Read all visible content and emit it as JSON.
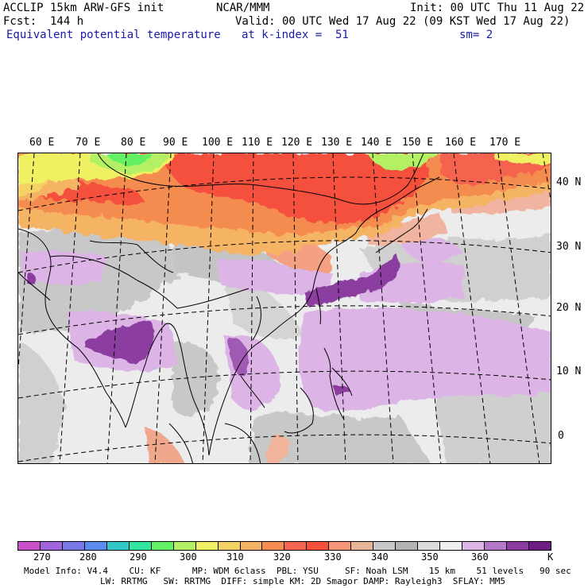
{
  "header": {
    "line1_left": "ACCLIP 15km ARW-GFS init",
    "line1_center": "NCAR/MMM",
    "line1_right": "Init: 00 UTC Thu 11 Aug 22",
    "line2_left": "Fcst:  144 h",
    "line2_right": "Valid: 00 UTC Wed 17 Aug 22 (09 KST Wed 17 Aug 22)",
    "line3_left": "Equivalent potential temperature",
    "line3_center": "at k-index =  51",
    "line3_right": "sm= 2"
  },
  "map": {
    "lon_labels": [
      "60 E",
      "70 E",
      "80 E",
      "90 E",
      "100 E",
      "110 E",
      "120 E",
      "130 E",
      "140 E",
      "150 E",
      "160 E",
      "170 E"
    ],
    "lat_labels": [
      "40 N",
      "30 N",
      "20 N",
      "10 N",
      "0"
    ]
  },
  "colorbar": {
    "colors": [
      "#c850c8",
      "#a064dc",
      "#7878e6",
      "#5a8cf0",
      "#32c8c8",
      "#32e6a0",
      "#64f064",
      "#b4f064",
      "#f0f064",
      "#f5d264",
      "#f5b464",
      "#f58c50",
      "#f56450",
      "#f5503c",
      "#f59678",
      "#e6b496",
      "#c8c8c8",
      "#b4b4b4",
      "#dcdcdc",
      "#f0f0f0",
      "#dcb4e6",
      "#b478c8",
      "#8c3ca0",
      "#6e1e82"
    ],
    "tick_labels": [
      "270",
      "280",
      "290",
      "300",
      "310",
      "320",
      "330",
      "340",
      "350",
      "360"
    ],
    "unit": "K"
  },
  "footer": {
    "line1": "Model Info: V4.4    CU: KF      MP: WDM 6class  PBL: YSU     SF: Noah LSM    15 km    51 levels   90 sec",
    "line2": "LW: RRTMG   SW: RRTMG  DIFF: simple KM: 2D Smagor DAMP: Rayleigh3  SFLAY: MM5"
  }
}
